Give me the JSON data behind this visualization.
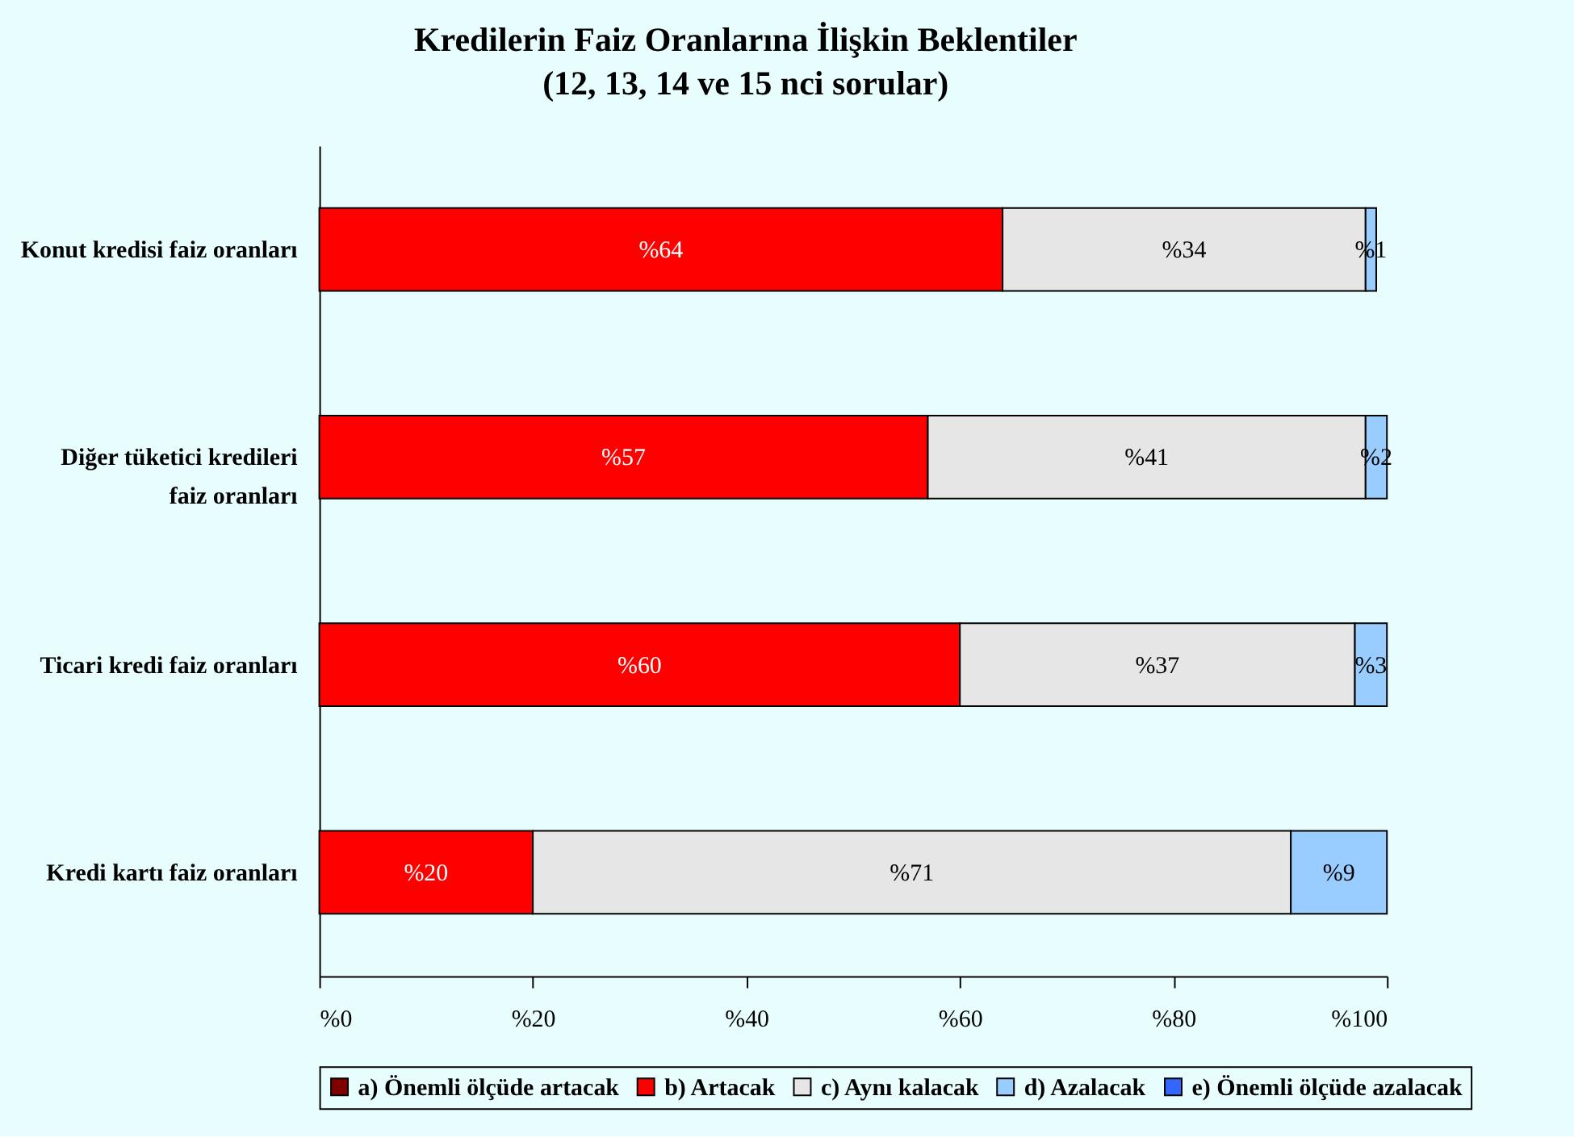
{
  "chart_data": {
    "type": "bar",
    "orientation": "horizontal",
    "stacked": true,
    "title": "Kredilerin Faiz Oranlarına İlişkin Beklentiler",
    "subtitle": "(12, 13, 14 ve 15 nci sorular)",
    "categories": [
      "Konut kredisi faiz oranları",
      "Diğer tüketici kredileri faiz oranları",
      "Ticari kredi faiz oranları",
      "Kredi kartı faiz oranları"
    ],
    "series": [
      {
        "name": "a) Önemli ölçüde artacak",
        "color": "#800000",
        "values": [
          null,
          null,
          null,
          null
        ]
      },
      {
        "name": "b) Artacak",
        "color": "#ff0000",
        "values": [
          64,
          57,
          60,
          20
        ],
        "value_labels": [
          "%64",
          "%57",
          "%60",
          "%20"
        ]
      },
      {
        "name": "c) Aynı kalacak",
        "color": "#e6e6e6",
        "values": [
          34,
          41,
          37,
          71
        ],
        "value_labels": [
          "%34",
          "%41",
          "%37",
          "%71"
        ]
      },
      {
        "name": "d) Azalacak",
        "color": "#99ccff",
        "values": [
          1,
          2,
          3,
          9
        ],
        "value_labels": [
          "%1",
          "%2",
          "%3",
          "%9"
        ]
      },
      {
        "name": "e) Önemli ölçüde azalacak",
        "color": "#3366ff",
        "values": [
          null,
          null,
          null,
          null
        ]
      }
    ],
    "xlim": [
      0,
      100
    ],
    "xticks": [
      {
        "value": 0,
        "label": "%0"
      },
      {
        "value": 20,
        "label": "%20"
      },
      {
        "value": 40,
        "label": "%40"
      },
      {
        "value": 60,
        "label": "%60"
      },
      {
        "value": 80,
        "label": "%80"
      },
      {
        "value": 100,
        "label": "%100"
      }
    ],
    "legend": "bottom"
  }
}
